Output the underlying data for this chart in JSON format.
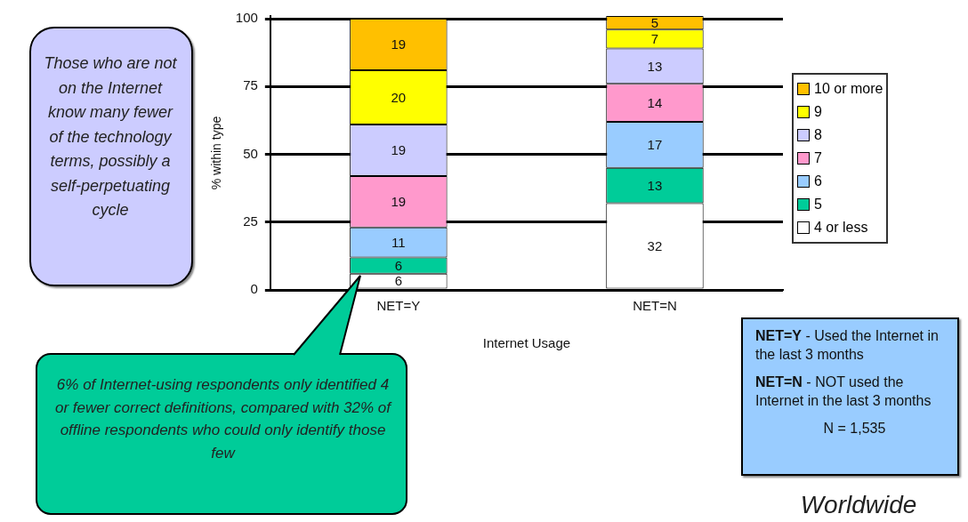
{
  "chart_data": {
    "type": "bar",
    "stacked": true,
    "xlabel": "Internet Usage",
    "ylabel": "% within type",
    "categories": [
      "NET=Y",
      "NET=N"
    ],
    "series": [
      {
        "name": "4 or less",
        "color": "#ffffff",
        "values": [
          6,
          32
        ]
      },
      {
        "name": "5",
        "color": "#00cc99",
        "values": [
          6,
          13
        ]
      },
      {
        "name": "6",
        "color": "#99ccff",
        "values": [
          11,
          17
        ]
      },
      {
        "name": "7",
        "color": "#ff99cc",
        "values": [
          19,
          14
        ]
      },
      {
        "name": "8",
        "color": "#ccccff",
        "values": [
          19,
          13
        ]
      },
      {
        "name": "9",
        "color": "#ffff00",
        "values": [
          20,
          7
        ]
      },
      {
        "name": "10 or more",
        "color": "#ffc000",
        "values": [
          19,
          5
        ]
      }
    ],
    "ylim": [
      0,
      101
    ],
    "yticks": [
      0,
      25,
      50,
      75,
      100
    ],
    "grid": "y",
    "legend": "right",
    "data_labels": true,
    "annotations": [
      "Those who are not on the Internet know many fewer of the technology terms, possibly a self-perpetuating cycle",
      "6% of Internet-using respondents only identified 4 or fewer correct definitions, compared with 32% of offline respondents who could only identify those few",
      "NET=Y - Used the Internet in the last 3 months",
      "NET=N - NOT used the Internet in the last 3 months",
      "N = 1,535",
      "Worldwide"
    ]
  }
}
